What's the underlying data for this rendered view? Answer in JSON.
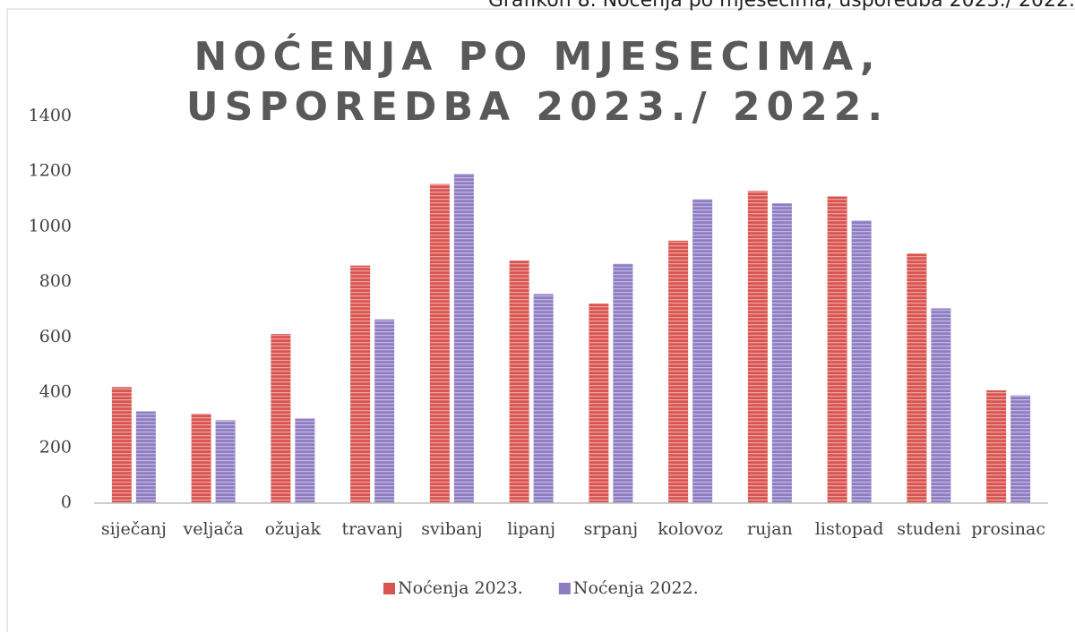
{
  "caption": "Grafikon 8. Noćenja po mjesecima, usporedba 2023./ 2022.",
  "chart_data": {
    "type": "bar",
    "title": "NOĆENJA PO MJESECIMA, USPOREDBA 2023./ 2022.",
    "categories": [
      "siječanj",
      "veljača",
      "ožujak",
      "travanj",
      "svibanj",
      "lipanj",
      "srpanj",
      "kolovoz",
      "rujan",
      "listopad",
      "studeni",
      "prosinac"
    ],
    "series": [
      {
        "name": "Noćenja 2023.",
        "color": "#d9534f",
        "values": [
          420,
          323,
          612,
          860,
          1155,
          878,
          722,
          950,
          1130,
          1110,
          903,
          408
        ]
      },
      {
        "name": "Noćenja 2022.",
        "color": "#8e7cc3",
        "values": [
          332,
          300,
          306,
          665,
          1192,
          757,
          866,
          1100,
          1085,
          1023,
          705,
          390
        ]
      }
    ],
    "ylim": [
      0,
      1400
    ],
    "yticks": [
      0,
      200,
      400,
      600,
      800,
      1000,
      1200,
      1400
    ],
    "grid": false,
    "legend": "bottom"
  }
}
